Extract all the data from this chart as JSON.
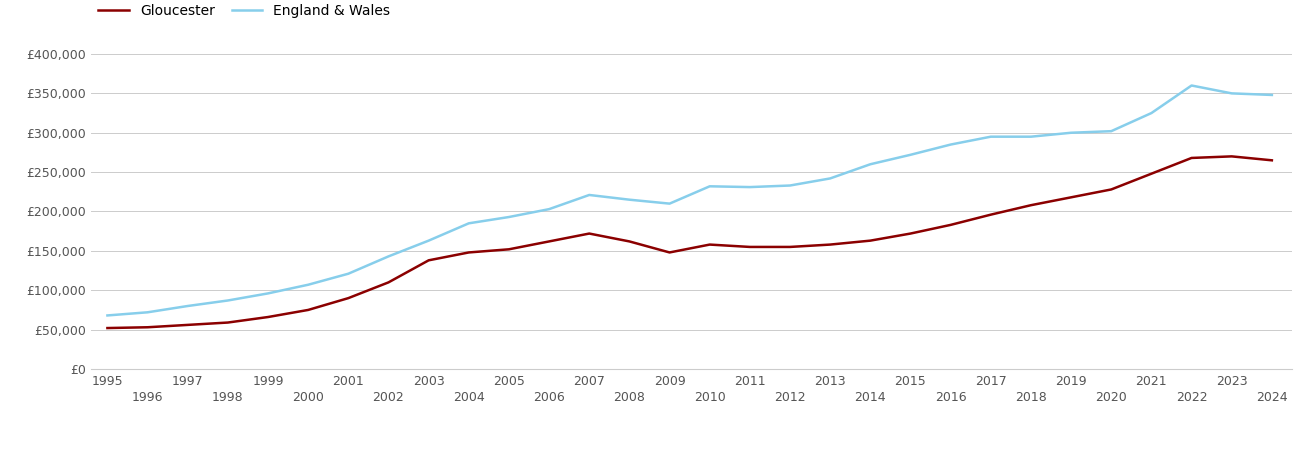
{
  "gloucester": {
    "years": [
      1995,
      1996,
      1997,
      1998,
      1999,
      2000,
      2001,
      2002,
      2003,
      2004,
      2005,
      2006,
      2007,
      2008,
      2009,
      2010,
      2011,
      2012,
      2013,
      2014,
      2015,
      2016,
      2017,
      2018,
      2019,
      2020,
      2021,
      2022,
      2023,
      2024
    ],
    "values": [
      52000,
      53000,
      56000,
      59000,
      66000,
      75000,
      90000,
      110000,
      138000,
      148000,
      152000,
      162000,
      172000,
      162000,
      148000,
      158000,
      155000,
      155000,
      158000,
      163000,
      172000,
      183000,
      196000,
      208000,
      218000,
      228000,
      248000,
      268000,
      270000,
      265000
    ]
  },
  "england_wales": {
    "years": [
      1995,
      1996,
      1997,
      1998,
      1999,
      2000,
      2001,
      2002,
      2003,
      2004,
      2005,
      2006,
      2007,
      2008,
      2009,
      2010,
      2011,
      2012,
      2013,
      2014,
      2015,
      2016,
      2017,
      2018,
      2019,
      2020,
      2021,
      2022,
      2023,
      2024
    ],
    "values": [
      68000,
      72000,
      80000,
      87000,
      96000,
      107000,
      121000,
      143000,
      163000,
      185000,
      193000,
      203000,
      221000,
      215000,
      210000,
      232000,
      231000,
      233000,
      242000,
      260000,
      272000,
      285000,
      295000,
      295000,
      300000,
      302000,
      325000,
      360000,
      350000,
      348000
    ]
  },
  "gloucester_color": "#8B0000",
  "england_wales_color": "#87CEEB",
  "background_color": "#ffffff",
  "grid_color": "#cccccc",
  "ylim": [
    0,
    400000
  ],
  "yticks": [
    0,
    50000,
    100000,
    150000,
    200000,
    250000,
    300000,
    350000,
    400000
  ],
  "xlim": [
    1994.6,
    2024.5
  ],
  "legend_labels": [
    "Gloucester",
    "England & Wales"
  ],
  "tick_color": "#555555",
  "line_width": 1.8,
  "odd_years": [
    1995,
    1997,
    1999,
    2001,
    2003,
    2005,
    2007,
    2009,
    2011,
    2013,
    2015,
    2017,
    2019,
    2021,
    2023
  ],
  "even_years": [
    1996,
    1998,
    2000,
    2002,
    2004,
    2006,
    2008,
    2010,
    2012,
    2014,
    2016,
    2018,
    2020,
    2022,
    2024
  ]
}
